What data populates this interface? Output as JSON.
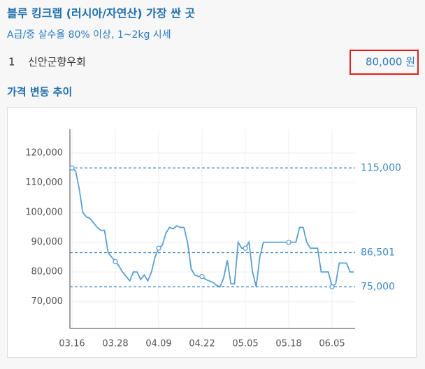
{
  "header": {
    "title": "블루 킹크랩 (러시아/자연산) 가장 싼 곳",
    "subtitle": "A급/중 살수율 80% 이상, 1~2kg 시세"
  },
  "item": {
    "rank": "1",
    "name": "신안군향우회",
    "price": "80,000 원"
  },
  "section_title": "가격 변동 추이",
  "chart_data": {
    "type": "line",
    "color": "#5a9fd4",
    "grid": true,
    "categories": [
      "03.16",
      null,
      null,
      null,
      null,
      null,
      null,
      null,
      null,
      null,
      null,
      null,
      "03.28",
      null,
      null,
      null,
      null,
      null,
      null,
      null,
      null,
      null,
      null,
      null,
      "04.09",
      null,
      null,
      null,
      null,
      null,
      null,
      null,
      null,
      null,
      null,
      null,
      "04.22",
      null,
      null,
      null,
      null,
      null,
      null,
      null,
      null,
      null,
      null,
      null,
      "05.05",
      null,
      null,
      null,
      null,
      null,
      null,
      null,
      null,
      null,
      null,
      null,
      "05.18",
      null,
      null,
      null,
      null,
      null,
      null,
      null,
      null,
      null,
      null,
      null,
      "06.05",
      null,
      null,
      null,
      null,
      null,
      null
    ],
    "values": [
      115000,
      114000,
      108000,
      100000,
      98500,
      98000,
      96500,
      95000,
      94000,
      94000,
      86500,
      85000,
      83500,
      82000,
      80000,
      78500,
      77000,
      80000,
      80000,
      77500,
      79000,
      77000,
      80000,
      85000,
      88000,
      89000,
      93000,
      95000,
      94500,
      95500,
      95000,
      95000,
      90000,
      81000,
      79000,
      78500,
      78500,
      77500,
      77000,
      76500,
      75500,
      75000,
      78000,
      84000,
      76000,
      76000,
      90000,
      88000,
      88000,
      90000,
      80000,
      75000,
      85000,
      90000,
      90000,
      90000,
      90000,
      90000,
      90000,
      90000,
      90000,
      90000,
      90000,
      95000,
      95000,
      90000,
      88000,
      88000,
      88000,
      80000,
      80000,
      80000,
      75000,
      76000,
      83000,
      83000,
      83000,
      80000,
      80000
    ],
    "ylim": [
      61000,
      128000
    ],
    "yticks": [
      {
        "value": 70000,
        "label": "70,000"
      },
      {
        "value": 80000,
        "label": "80,000"
      },
      {
        "value": 90000,
        "label": "90,000"
      },
      {
        "value": 100000,
        "label": "100,000"
      },
      {
        "value": 110000,
        "label": "110,000"
      },
      {
        "value": 120000,
        "label": "120,000"
      }
    ],
    "reference_lines": [
      {
        "value": 115000,
        "label": "115,000"
      },
      {
        "value": 86501,
        "label": "86,501"
      },
      {
        "value": 75000,
        "label": "75,000"
      }
    ]
  }
}
